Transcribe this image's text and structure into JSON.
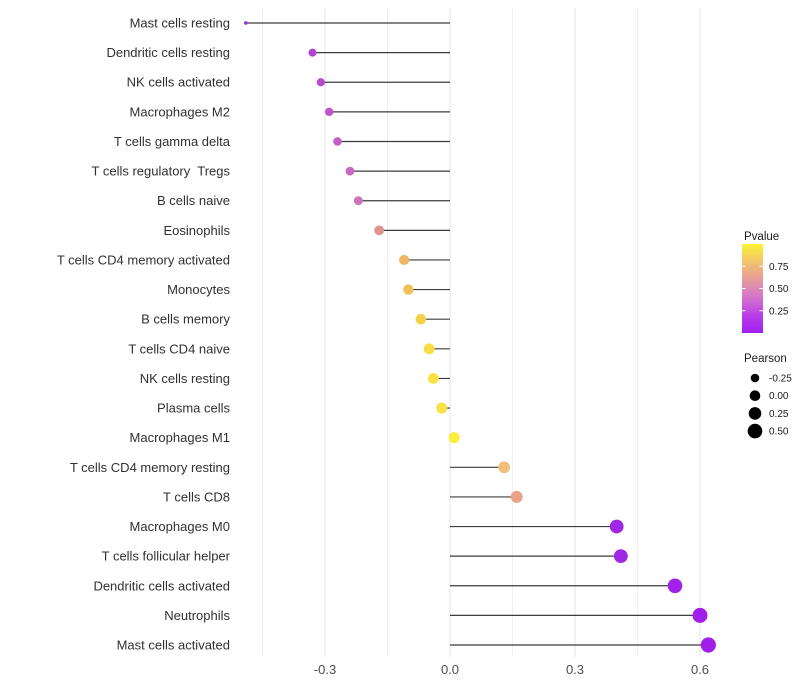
{
  "chart_data": {
    "type": "lollipop",
    "title": "",
    "xlabel": "",
    "ylabel": "",
    "x_tick_values": [
      -0.3,
      0.0,
      0.3,
      0.6
    ],
    "x_tick_labels": [
      "-0.3",
      "0.0",
      "0.3",
      "0.6"
    ],
    "x_minor_gridlines": [
      -0.45,
      -0.15,
      0.15,
      0.45
    ],
    "xlim": [
      -0.515,
      0.648
    ],
    "grid": "vertical-only",
    "legend_position": "right",
    "categories": [
      "Mast cells resting",
      "Dendritic cells resting",
      "NK cells activated",
      "Macrophages M2",
      "T cells gamma delta",
      "T cells regulatory  Tregs",
      "B cells naive",
      "Eosinophils",
      "T cells CD4 memory activated",
      "Monocytes",
      "B cells memory",
      "T cells CD4 naive",
      "NK cells resting",
      "Plasma cells",
      "Macrophages M1",
      "T cells CD4 memory resting",
      "T cells CD8",
      "Macrophages M0",
      "T cells follicular helper",
      "Dendritic cells activated",
      "Neutrophils",
      "Mast cells activated"
    ],
    "points": [
      {
        "label": "Mast cells resting",
        "pearson": -0.49,
        "pvalue_est": 0.05,
        "color": "#9430DE",
        "radius": 1.8
      },
      {
        "label": "Dendritic cells resting",
        "pearson": -0.33,
        "pvalue_est": 0.15,
        "color": "#B243D7",
        "radius": 4.0
      },
      {
        "label": "NK cells activated",
        "pearson": -0.31,
        "pvalue_est": 0.17,
        "color": "#B84AD2",
        "radius": 4.1
      },
      {
        "label": "Macrophages M2",
        "pearson": -0.29,
        "pvalue_est": 0.2,
        "color": "#BF55CB",
        "radius": 4.2
      },
      {
        "label": "T cells gamma delta",
        "pearson": -0.27,
        "pvalue_est": 0.23,
        "color": "#C55FC6",
        "radius": 4.3
      },
      {
        "label": "T cells regulatory  Tregs",
        "pearson": -0.24,
        "pvalue_est": 0.26,
        "color": "#CB69C0",
        "radius": 4.4
      },
      {
        "label": "B cells naive",
        "pearson": -0.22,
        "pvalue_est": 0.3,
        "color": "#D074BA",
        "radius": 4.5
      },
      {
        "label": "Eosinophils",
        "pearson": -0.17,
        "pvalue_est": 0.45,
        "color": "#E0928E",
        "radius": 4.9
      },
      {
        "label": "T cells CD4 memory activated",
        "pearson": -0.11,
        "pvalue_est": 0.62,
        "color": "#EDB863",
        "radius": 5.1
      },
      {
        "label": "Monocytes",
        "pearson": -0.1,
        "pvalue_est": 0.66,
        "color": "#F0C158",
        "radius": 5.2
      },
      {
        "label": "B cells memory",
        "pearson": -0.07,
        "pvalue_est": 0.74,
        "color": "#F4D14B",
        "radius": 5.3
      },
      {
        "label": "T cells CD4 naive",
        "pearson": -0.05,
        "pvalue_est": 0.8,
        "color": "#F7DC45",
        "radius": 5.4
      },
      {
        "label": "NK cells resting",
        "pearson": -0.04,
        "pvalue_est": 0.85,
        "color": "#F8E342",
        "radius": 5.4
      },
      {
        "label": "Plasma cells",
        "pearson": -0.02,
        "pvalue_est": 0.84,
        "color": "#F8E244",
        "radius": 5.5
      },
      {
        "label": "Macrophages M1",
        "pearson": 0.01,
        "pvalue_est": 0.95,
        "color": "#FBEF3B",
        "radius": 5.5
      },
      {
        "label": "T cells CD4 memory resting",
        "pearson": 0.13,
        "pvalue_est": 0.6,
        "color": "#F1BE7B",
        "radius": 5.9
      },
      {
        "label": "T cells CD8",
        "pearson": 0.16,
        "pvalue_est": 0.52,
        "color": "#E9A288",
        "radius": 6.0
      },
      {
        "label": "Macrophages M0",
        "pearson": 0.4,
        "pvalue_est": 0.06,
        "color": "#9F27E5",
        "radius": 6.9
      },
      {
        "label": "T cells follicular helper",
        "pearson": 0.41,
        "pvalue_est": 0.06,
        "color": "#9F27E5",
        "radius": 6.9
      },
      {
        "label": "Dendritic cells activated",
        "pearson": 0.54,
        "pvalue_est": 0.03,
        "color": "#A122E8",
        "radius": 7.3
      },
      {
        "label": "Neutrophils",
        "pearson": 0.6,
        "pvalue_est": 0.02,
        "color": "#A21FEA",
        "radius": 7.5
      },
      {
        "label": "Mast cells activated",
        "pearson": 0.62,
        "pvalue_est": 0.02,
        "color": "#A21FEA",
        "radius": 7.6
      }
    ],
    "legend": {
      "pvalue": {
        "title": "Pvalue",
        "tick_labels": [
          "0.75",
          "0.50",
          "0.25"
        ],
        "tick_values": [
          0.75,
          0.5,
          0.25
        ],
        "range": [
          0,
          1
        ],
        "gradient_top_to_bottom": [
          "#FBF438",
          "#F2C46C",
          "#E59B9B",
          "#D573CC",
          "#B93EE6",
          "#A21EF5"
        ]
      },
      "pearson": {
        "title": "Pearson",
        "entries": [
          {
            "label": "-0.25",
            "radius": 4.3
          },
          {
            "label": "0.00",
            "radius": 5.3
          },
          {
            "label": "0.25",
            "radius": 6.3
          },
          {
            "label": "0.50",
            "radius": 7.3
          }
        ],
        "dot_color": "#000000"
      }
    },
    "style": {
      "stem_color": "#3C3C3C",
      "grid_major_color": "#E4E4E4",
      "grid_minor_color": "#F1F1F1",
      "axis_text_color": "#303030",
      "legend_text_color": "#1A1A1A",
      "background": "#FFFFFF"
    }
  }
}
